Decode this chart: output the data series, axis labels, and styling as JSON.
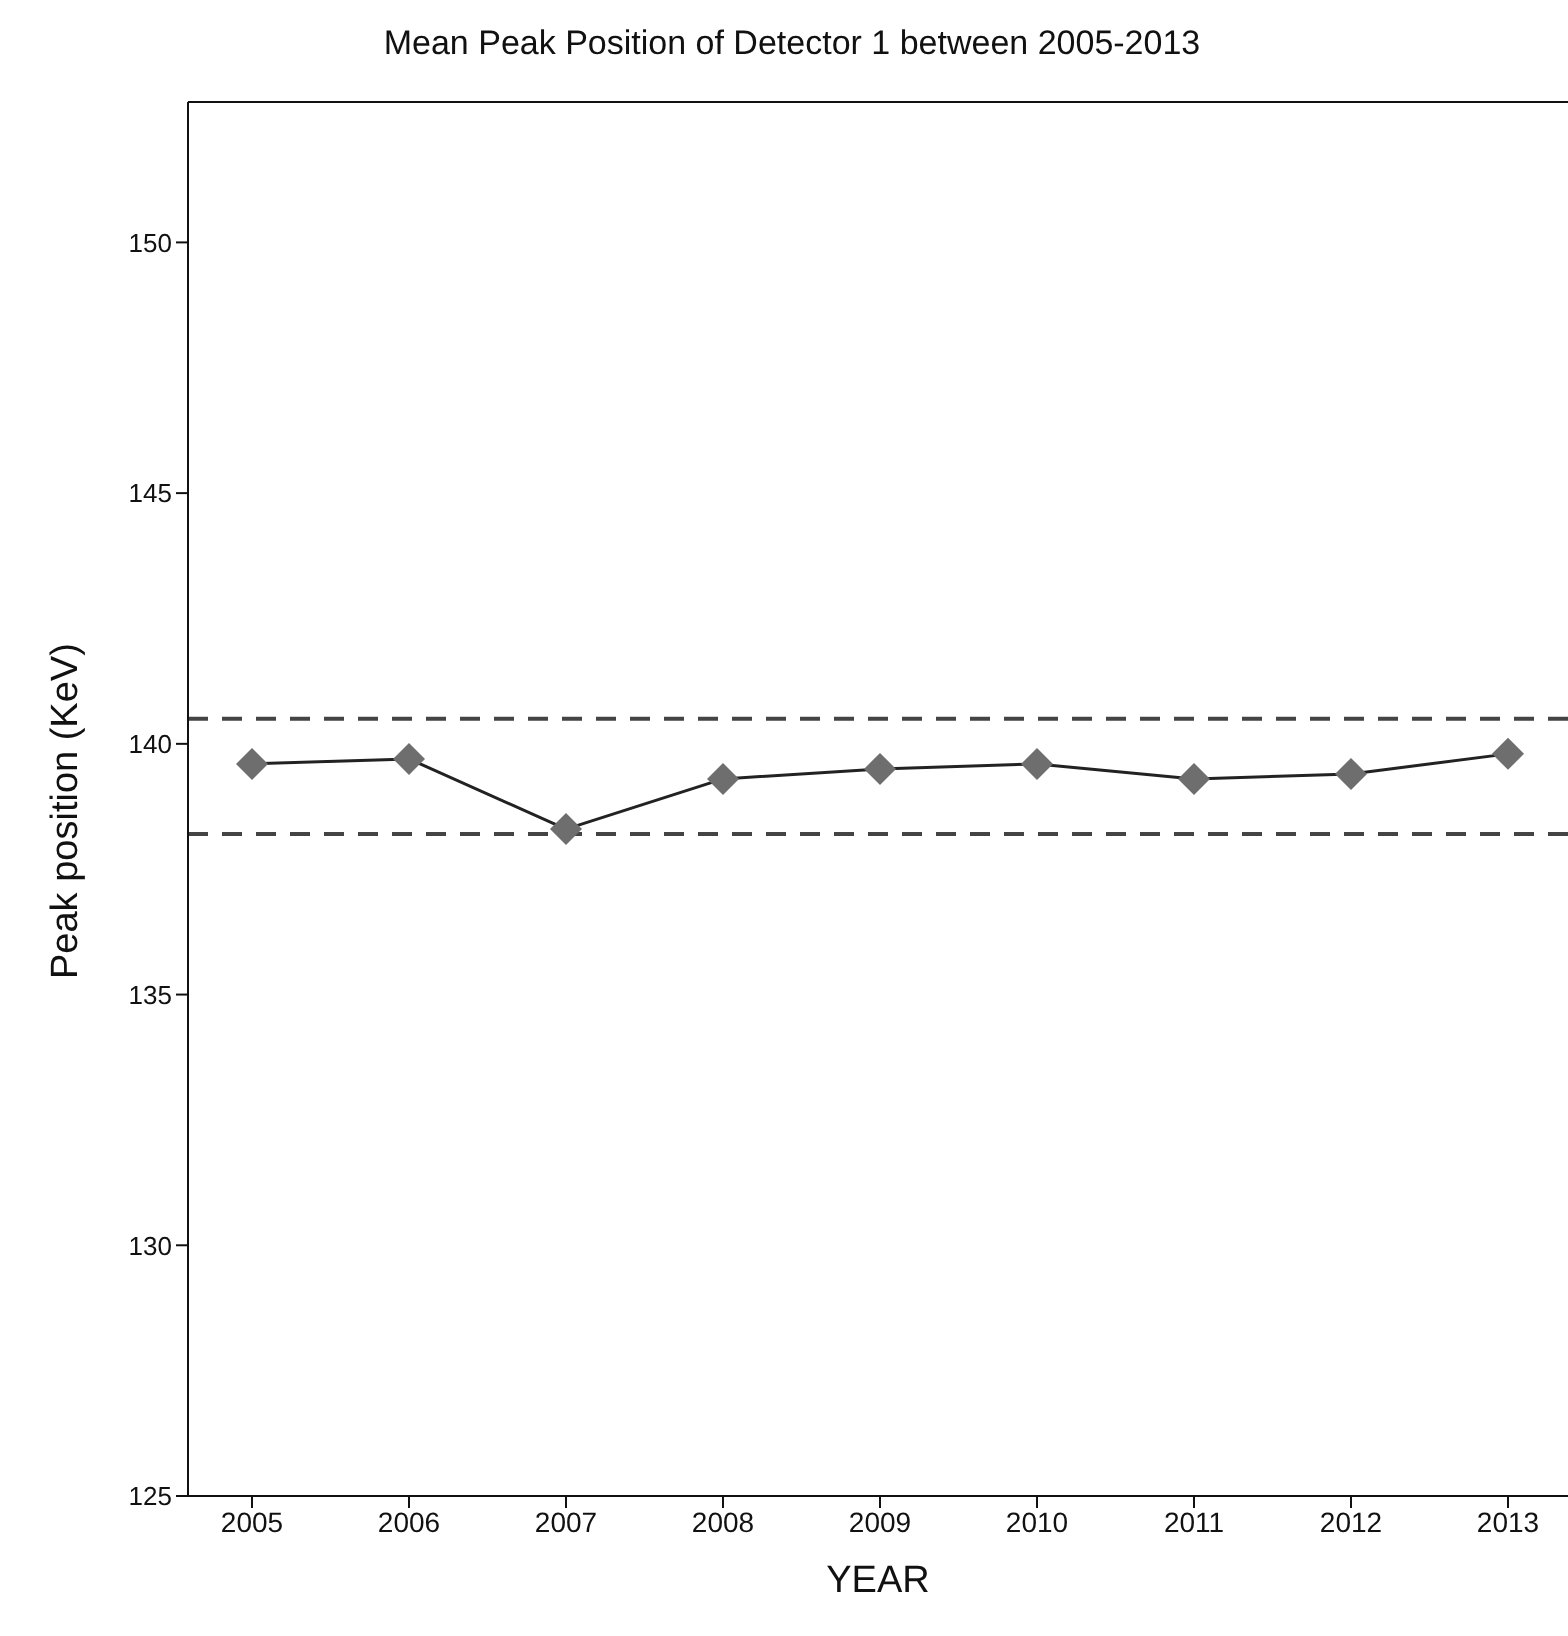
{
  "chart_data": {
    "type": "line",
    "title": "Mean Peak Position of Detector 1 between 2005-2013",
    "xlabel": "YEAR",
    "ylabel": "Peak position (KeV)",
    "categories": [
      "2005",
      "2006",
      "2007",
      "2008",
      "2009",
      "2010",
      "2011",
      "2012",
      "2013"
    ],
    "series": [
      {
        "color": "#6e6e6e",
        "values": [
          139.6,
          139.7,
          138.3,
          139.3,
          139.5,
          139.6,
          139.3,
          139.4,
          139.8
        ]
      }
    ],
    "ylim": [
      125,
      152.8
    ],
    "yticks": [
      125,
      130,
      135,
      140,
      145,
      150
    ],
    "grid": false,
    "legend": false,
    "marker": "diamond",
    "line_style": "solid",
    "ref_lines": [
      {
        "axis": "y",
        "value": 140.5,
        "line_style": "dashed",
        "color": "#444444"
      },
      {
        "axis": "y",
        "value": 138.2,
        "line_style": "dashed",
        "color": "#444444"
      }
    ]
  }
}
